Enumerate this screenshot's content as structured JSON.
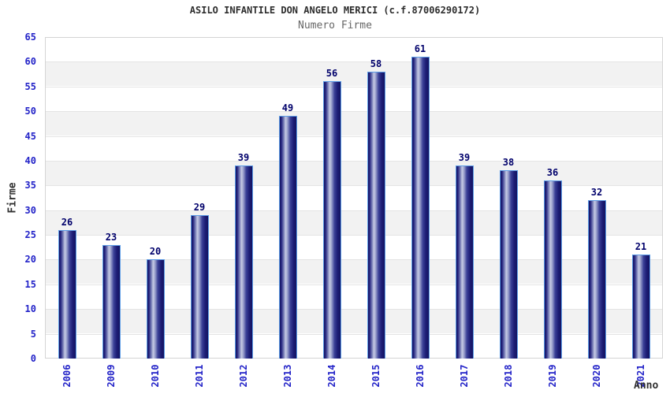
{
  "chart_data": {
    "type": "bar",
    "title": "ASILO INFANTILE DON ANGELO MERICI (c.f.87006290172)",
    "subtitle": "Numero Firme",
    "categories": [
      "2006",
      "2009",
      "2010",
      "2011",
      "2012",
      "2013",
      "2014",
      "2015",
      "2016",
      "2017",
      "2018",
      "2019",
      "2020",
      "2021"
    ],
    "values": [
      26,
      23,
      20,
      29,
      39,
      49,
      56,
      58,
      61,
      39,
      38,
      36,
      32,
      21
    ],
    "xlabel": "Anno",
    "ylabel": "Firme",
    "ylim": [
      0,
      65
    ],
    "ytick_step": 5,
    "grid": true,
    "legend": false,
    "bar_value_labels": true,
    "x_tick_rotation": -90,
    "band_shading": "alternating horizontal stripes every 5 units"
  },
  "colors": {
    "background": "#ffffff",
    "title": "#2d2d2d",
    "subtitle": "#676767",
    "axis_label": "#303030",
    "tick_label": "#2323c8",
    "value_label": "#00006b",
    "bar_dark": "#131360",
    "bar_mid": "#3c4298",
    "bar_highlight": "#c6cae4",
    "bar_border": "#5c9ce6",
    "band_fill": "#f2f2f2",
    "gridline": "#e4e4e4",
    "plot_border": "#d4d4d4"
  }
}
